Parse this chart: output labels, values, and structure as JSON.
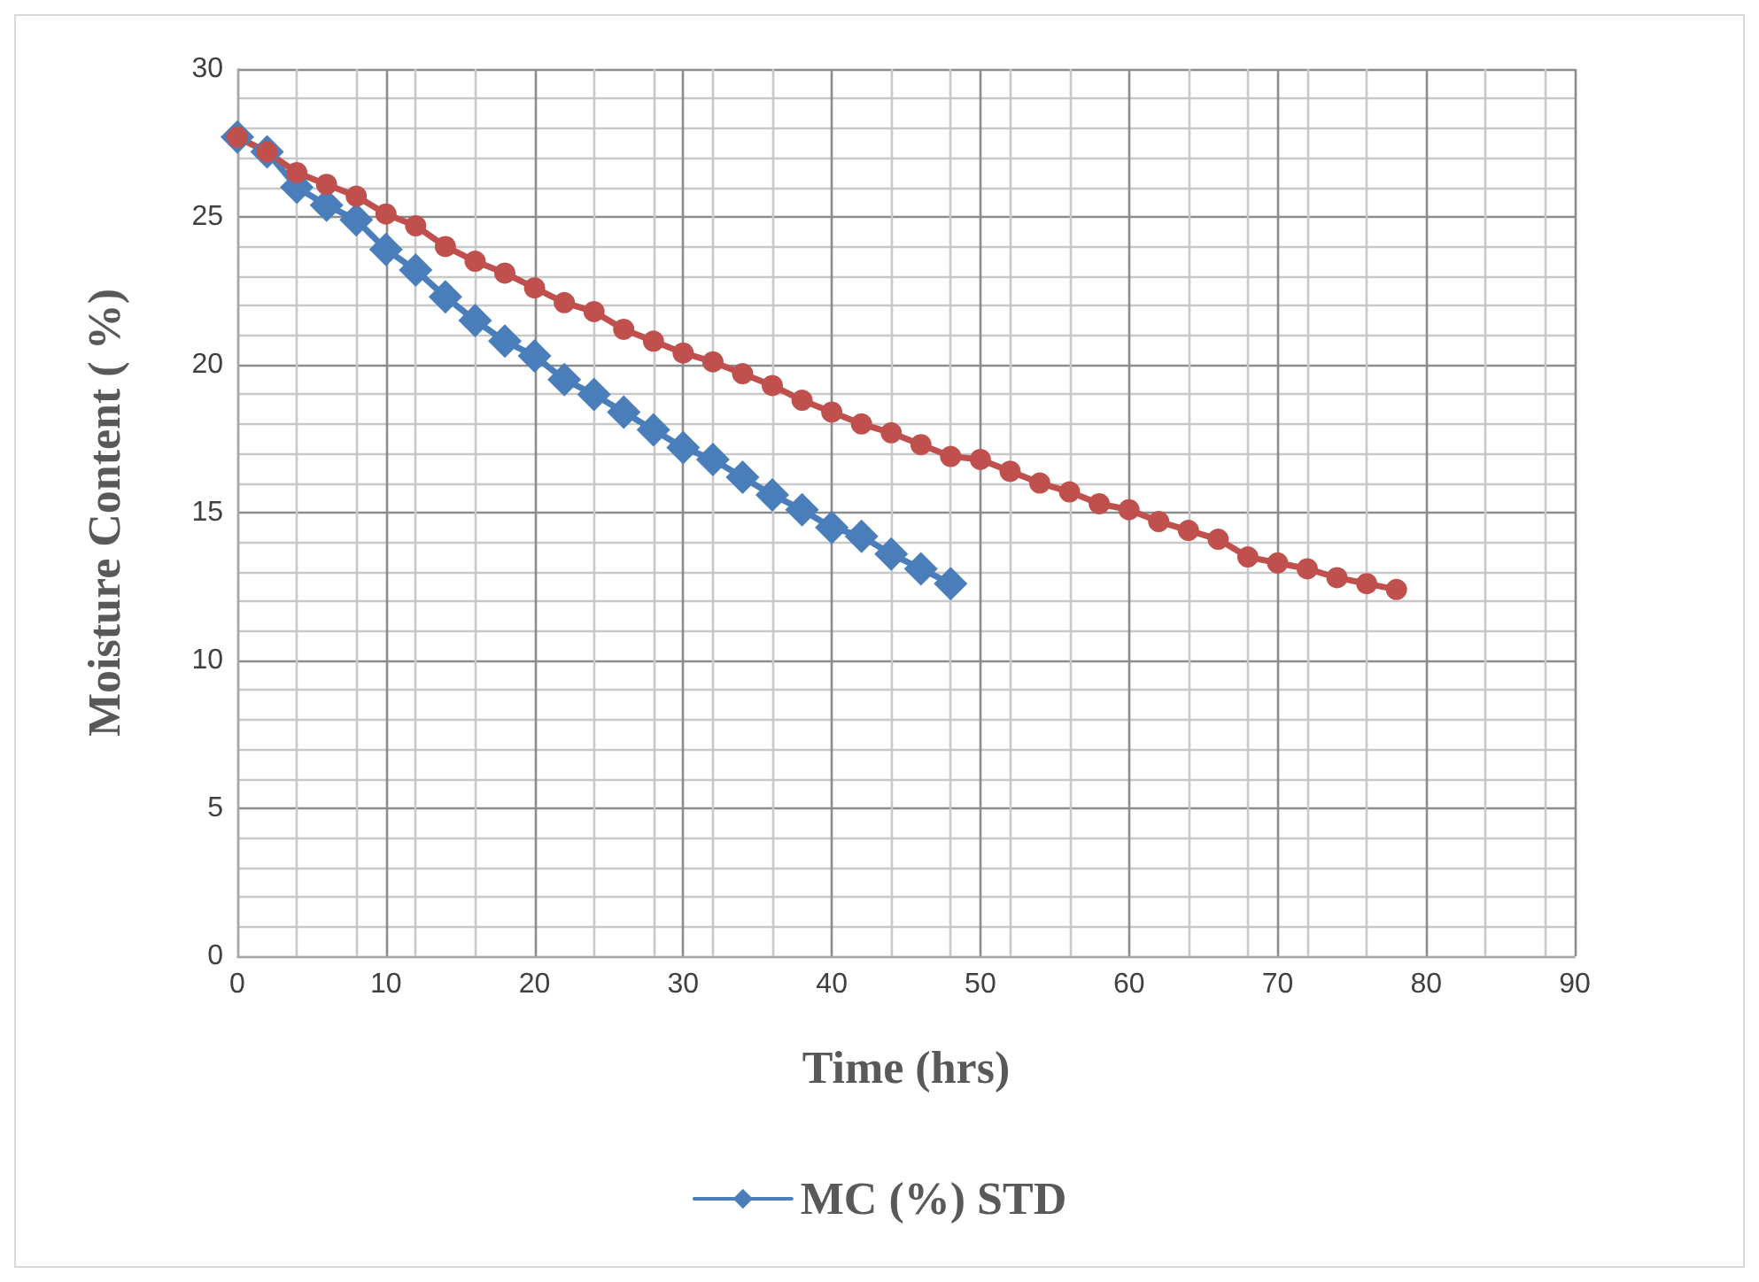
{
  "chart_data": {
    "type": "line",
    "xlabel": "Time (hrs)",
    "ylabel": "Moisture Content ( %)",
    "xlim": [
      0,
      90
    ],
    "xticks": [
      0,
      10,
      20,
      30,
      40,
      50,
      60,
      70,
      80,
      90
    ],
    "ylim": [
      0,
      30
    ],
    "yticks": [
      0,
      5,
      10,
      15,
      20,
      25,
      30
    ],
    "grid": true,
    "legend": "bottom",
    "series": [
      {
        "name": "MC (%) STD",
        "color": "#4a7ebb",
        "marker": "diamond",
        "x": [
          0,
          2,
          4,
          6,
          8,
          10,
          12,
          14,
          16,
          18,
          20,
          22,
          24,
          26,
          28,
          30,
          32,
          34,
          36,
          38,
          40,
          42,
          44,
          46,
          48
        ],
        "values": [
          27.7,
          27.2,
          26.0,
          25.4,
          24.9,
          23.9,
          23.2,
          22.3,
          21.5,
          20.8,
          20.3,
          19.5,
          19.0,
          18.4,
          17.8,
          17.2,
          16.8,
          16.2,
          15.6,
          15.1,
          14.5,
          14.2,
          13.6,
          13.1,
          12.6
        ]
      },
      {
        "color": "#c0504d",
        "marker": "circle",
        "x": [
          0,
          2,
          4,
          6,
          8,
          10,
          12,
          14,
          16,
          18,
          20,
          22,
          24,
          26,
          28,
          30,
          32,
          34,
          36,
          38,
          40,
          42,
          44,
          46,
          48,
          50,
          52,
          54,
          56,
          58,
          60,
          62,
          64,
          66,
          68,
          70,
          72,
          74,
          76,
          78
        ],
        "values": [
          27.7,
          27.2,
          26.5,
          26.1,
          25.7,
          25.1,
          24.7,
          24.0,
          23.5,
          23.1,
          22.6,
          22.1,
          21.8,
          21.2,
          20.8,
          20.4,
          20.1,
          19.7,
          19.3,
          18.8,
          18.4,
          18.0,
          17.7,
          17.3,
          16.9,
          16.8,
          16.4,
          16.0,
          15.7,
          15.3,
          15.1,
          14.7,
          14.4,
          14.1,
          13.5,
          13.3,
          13.1,
          12.8,
          12.6,
          12.4
        ]
      }
    ]
  }
}
